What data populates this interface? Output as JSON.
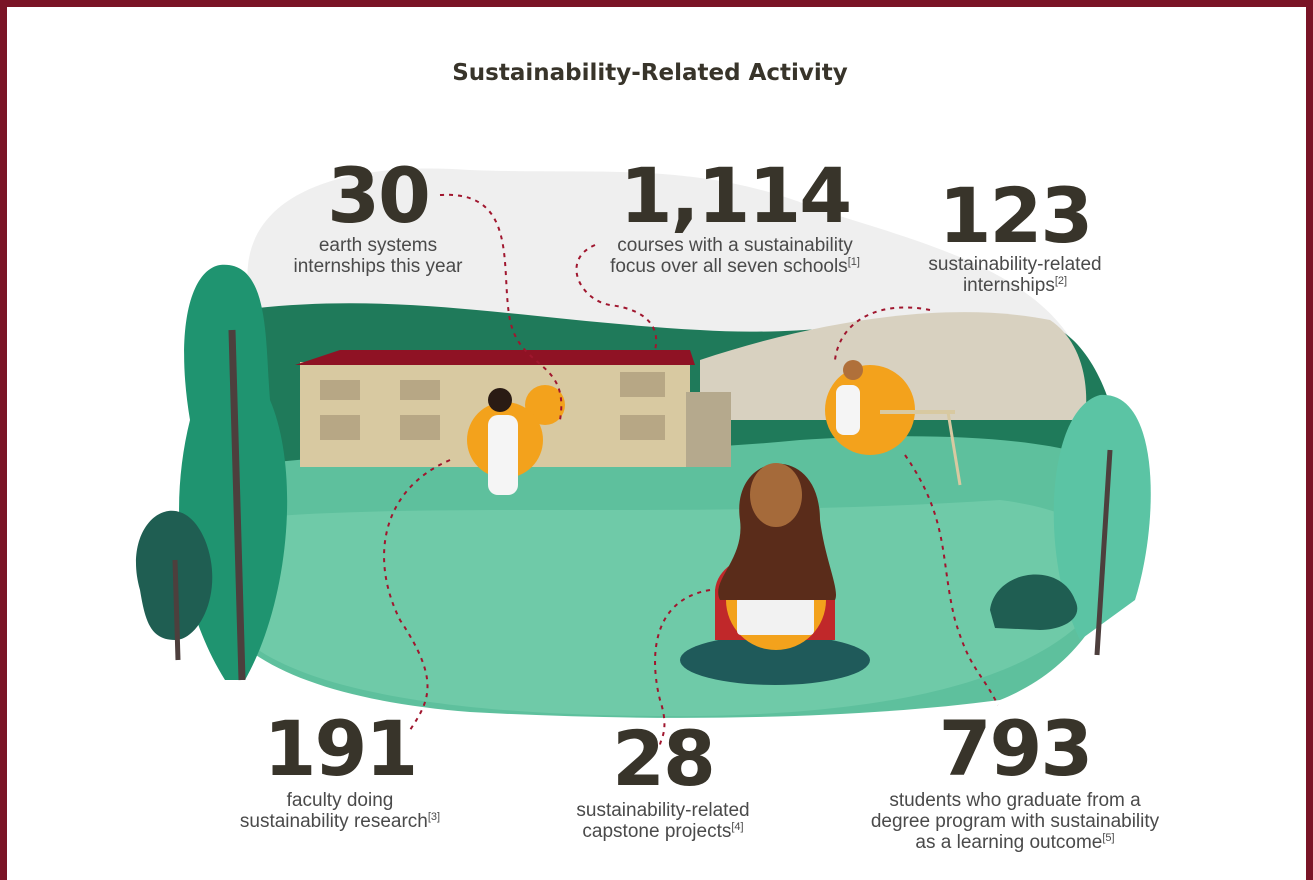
{
  "title": "Sustainability-Related Activity",
  "stats": [
    {
      "value": "30",
      "label": [
        "earth systems",
        "internships this year"
      ]
    },
    {
      "value": "1,114",
      "label": [
        "courses with a sustainability",
        "focus over all seven schools"
      ],
      "note": "[1]"
    },
    {
      "value": "123",
      "label": [
        "sustainability-related",
        "internships"
      ],
      "note": "[2]"
    },
    {
      "value": "191",
      "label": [
        "faculty doing",
        "sustainability research"
      ],
      "note": "[3]"
    },
    {
      "value": "28",
      "label": [
        "sustainability-related",
        "capstone projects"
      ],
      "note": "[4]"
    },
    {
      "value": "793",
      "label": [
        "students who graduate from a",
        "degree program with sustainability",
        "as a learning outcome"
      ],
      "note": "[5]"
    }
  ]
}
